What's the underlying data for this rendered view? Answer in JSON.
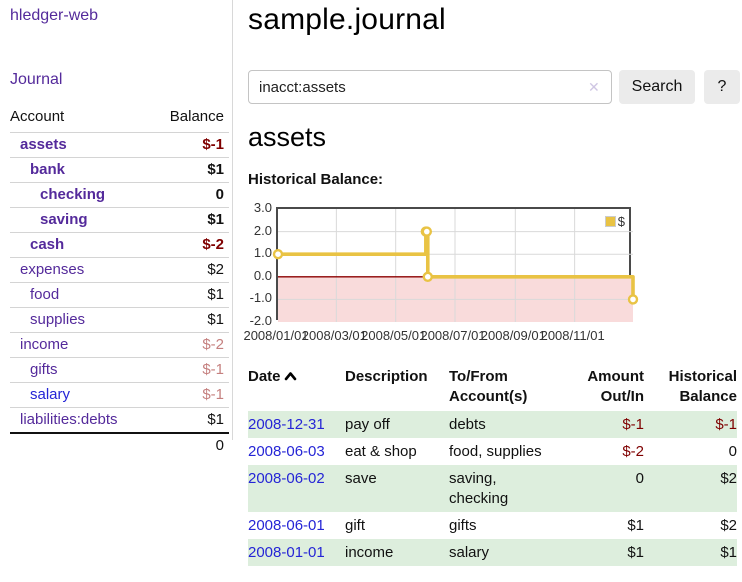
{
  "app": {
    "title": "hledger-web"
  },
  "sidebar": {
    "journal_link": "Journal",
    "accounts": {
      "headers": {
        "account": "Account",
        "balance": "Balance"
      },
      "rows": [
        {
          "name": "assets",
          "balance": "$-1"
        },
        {
          "name": "bank",
          "balance": "$1"
        },
        {
          "name": "checking",
          "balance": "0"
        },
        {
          "name": "saving",
          "balance": "$1"
        },
        {
          "name": "cash",
          "balance": "$-2"
        },
        {
          "name": "expenses",
          "balance": "$2"
        },
        {
          "name": "food",
          "balance": "$1"
        },
        {
          "name": "supplies",
          "balance": "$1"
        },
        {
          "name": "income",
          "balance": "$-2"
        },
        {
          "name": "gifts",
          "balance": "$-1"
        },
        {
          "name": "salary",
          "balance": "$-1"
        },
        {
          "name": "liabilities:debts",
          "balance": "$1"
        }
      ],
      "total": "0"
    }
  },
  "main": {
    "title": "sample.journal",
    "search": {
      "value": "inacct:assets",
      "clear_glyph": "✕",
      "button_label": "Search",
      "help_label": "?"
    },
    "account_heading": "assets",
    "chart_label": "Historical Balance:"
  },
  "chart_data": {
    "type": "line",
    "style": "step",
    "title": "Historical Balance",
    "legend": {
      "label": "$",
      "position": "top-right"
    },
    "series": [
      {
        "name": "$",
        "color": "#e9c344",
        "points": [
          {
            "date": "2008/01/01",
            "day": 0,
            "value": 1
          },
          {
            "date": "2008/06/01",
            "day": 152,
            "value": 2
          },
          {
            "date": "2008/06/02",
            "day": 153,
            "value": 2
          },
          {
            "date": "2008/06/03",
            "day": 154,
            "value": 0
          },
          {
            "date": "2008/12/31",
            "day": 365,
            "value": -1
          }
        ]
      }
    ],
    "x_ticks": [
      {
        "label": "2008/01/01",
        "day": 0
      },
      {
        "label": "2008/03/01",
        "day": 60
      },
      {
        "label": "2008/05/01",
        "day": 121
      },
      {
        "label": "2008/07/01",
        "day": 182
      },
      {
        "label": "2008/09/01",
        "day": 244
      },
      {
        "label": "2008/11/01",
        "day": 305
      }
    ],
    "y_ticks": [
      "3.0",
      "2.0",
      "1.0",
      "0.0",
      "-1.0",
      "-2.0"
    ],
    "ylim": [
      -2,
      3
    ],
    "x_range_days": 365,
    "grid": true,
    "zero_line_color": "#8b0000",
    "negative_region_color": "#f9dbdb"
  },
  "transactions": {
    "headers": {
      "date": "Date",
      "description": "Description",
      "to_from": "To/From\nAccount(s)",
      "amount": "Amount\nOut/In",
      "historical": "Historical\nBalance"
    },
    "rows": [
      {
        "date": "2008-12-31",
        "description": "pay off",
        "to_from": "debts",
        "amount": "$-1",
        "balance": "$-1"
      },
      {
        "date": "2008-06-03",
        "description": "eat & shop",
        "to_from": "food, supplies",
        "amount": "$-2",
        "balance": "0"
      },
      {
        "date": "2008-06-02",
        "description": "save",
        "to_from": "saving,\nchecking",
        "amount": "0",
        "balance": "$2"
      },
      {
        "date": "2008-06-01",
        "description": "gift",
        "to_from": "gifts",
        "amount": "$1",
        "balance": "$2"
      },
      {
        "date": "2008-01-01",
        "description": "income",
        "to_from": "salary",
        "amount": "$1",
        "balance": "$1"
      }
    ]
  },
  "colors": {
    "link_purple": "#542a9b",
    "link_blue": "#2525d6",
    "negative_strong": "#7f0000",
    "negative_light": "#c5807f",
    "row_green": "#ddeedd",
    "series_yellow": "#e9c344"
  }
}
